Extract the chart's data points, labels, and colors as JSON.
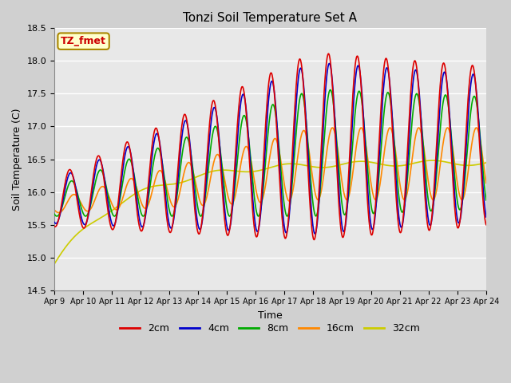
{
  "title": "Tonzi Soil Temperature Set A",
  "xlabel": "Time",
  "ylabel": "Soil Temperature (C)",
  "ylim": [
    14.5,
    18.5
  ],
  "annotation_text": "TZ_fmet",
  "annotation_bg": "#ffffcc",
  "annotation_border": "#aa8800",
  "legend_labels": [
    "2cm",
    "4cm",
    "8cm",
    "16cm",
    "32cm"
  ],
  "line_colors": [
    "#dd0000",
    "#0000cc",
    "#00aa00",
    "#ff8800",
    "#cccc00"
  ],
  "xtick_labels": [
    "Apr 9",
    "Apr 10",
    "Apr 11",
    "Apr 12",
    "Apr 13",
    "Apr 14",
    "Apr 15",
    "Apr 16",
    "Apr 17",
    "Apr 18",
    "Apr 19",
    "Apr 20",
    "Apr 21",
    "Apr 22",
    "Apr 23",
    "Apr 24"
  ]
}
